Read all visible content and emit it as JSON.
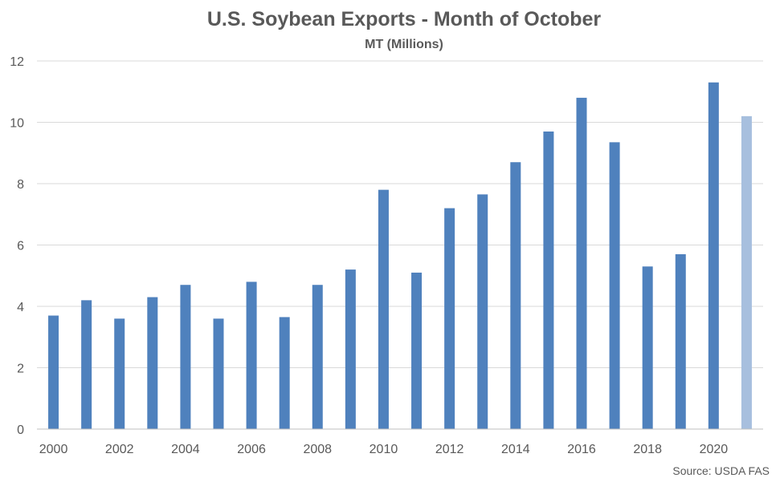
{
  "chart_data": {
    "type": "bar",
    "title": "U.S. Soybean Exports - Month of October",
    "subtitle": "MT (Millions)",
    "xlabel": "",
    "ylabel": "",
    "ylim": [
      0,
      12
    ],
    "yticks": [
      0,
      2,
      4,
      6,
      8,
      10,
      12
    ],
    "grid": true,
    "legend": "none",
    "categories": [
      "2000",
      "2001",
      "2002",
      "2003",
      "2004",
      "2005",
      "2006",
      "2007",
      "2008",
      "2009",
      "2010",
      "2011",
      "2012",
      "2013",
      "2014",
      "2015",
      "2016",
      "2017",
      "2018",
      "2019",
      "2020",
      "2021"
    ],
    "xtick_labels": [
      "2000",
      "2002",
      "2004",
      "2006",
      "2008",
      "2010",
      "2012",
      "2014",
      "2016",
      "2018",
      "2020"
    ],
    "values": [
      3.7,
      4.2,
      3.6,
      4.3,
      4.7,
      3.6,
      4.8,
      3.65,
      4.7,
      5.2,
      7.8,
      5.1,
      7.2,
      7.65,
      8.7,
      9.7,
      10.8,
      9.35,
      5.3,
      5.7,
      11.3,
      10.2
    ],
    "colors": {
      "bar": "#4f81bd",
      "highlight": "#a7bfde"
    },
    "highlight_index": 21,
    "source": "Source: USDA FAS"
  }
}
